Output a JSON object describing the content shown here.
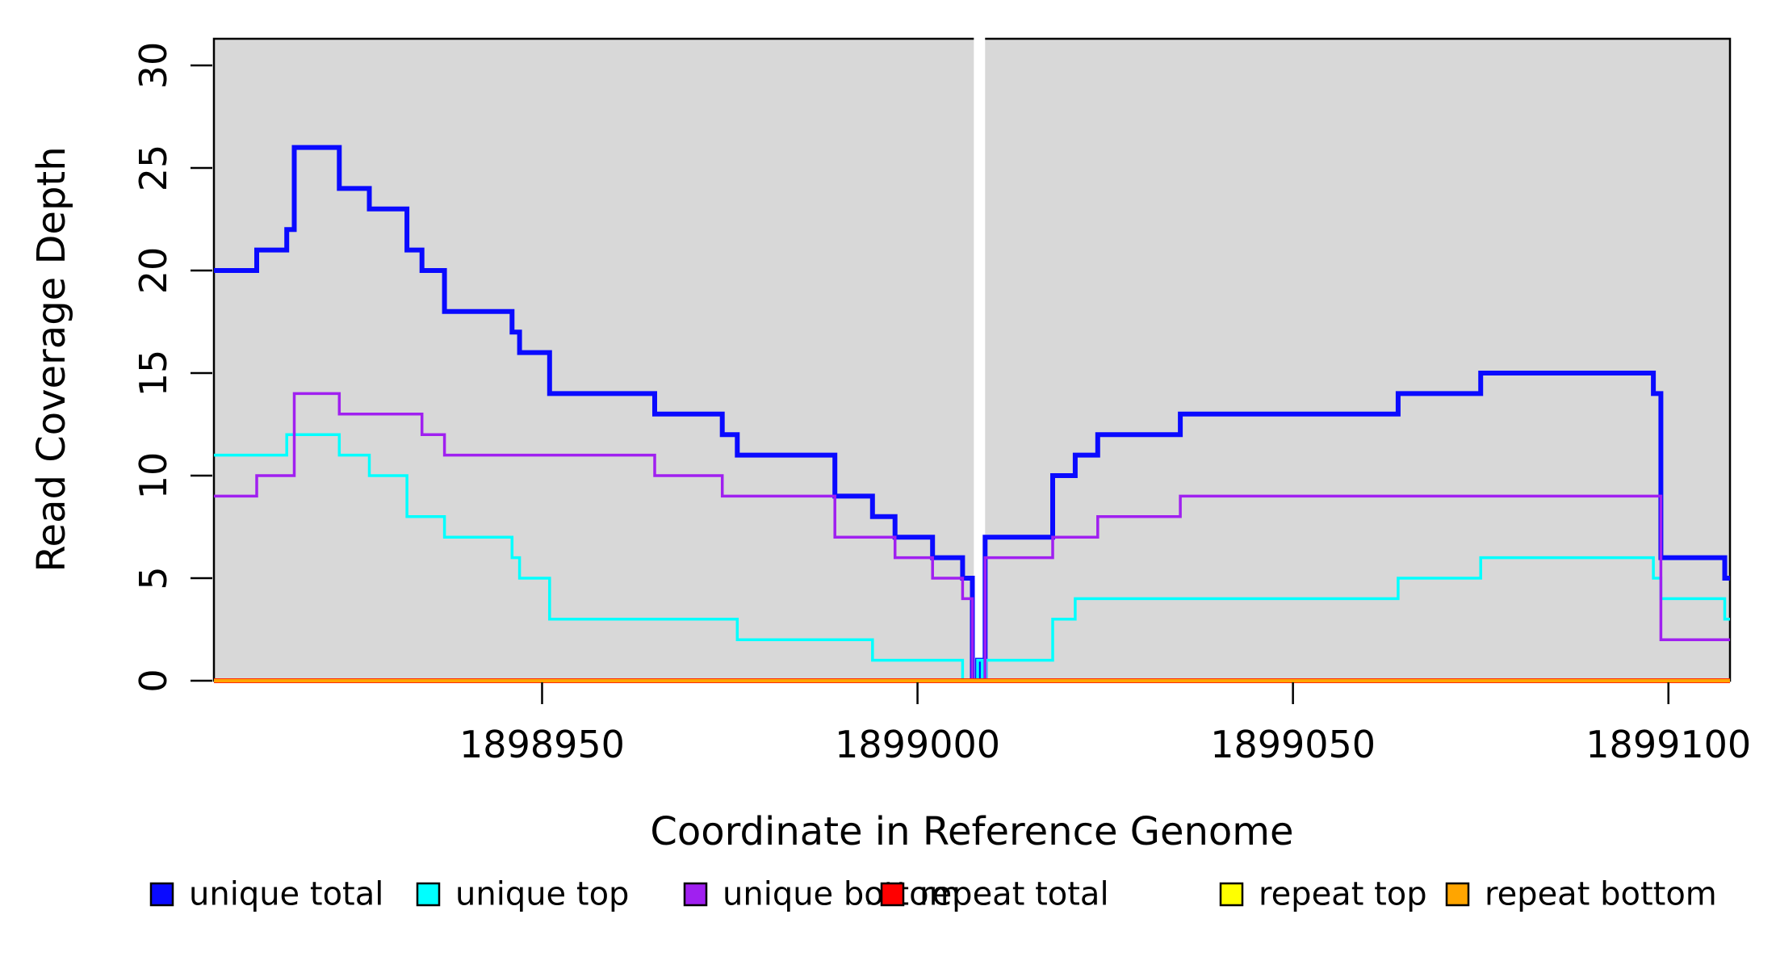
{
  "chart_data": {
    "type": "line",
    "subtype": "step-coverage",
    "title": "",
    "xlabel": "Coordinate in Reference Genome",
    "ylabel": "Read Coverage Depth",
    "xlim": [
      1898906.3,
      1899108.2
    ],
    "ylim": [
      0,
      31.3
    ],
    "grid": false,
    "panel_bg": "#D8D8D8",
    "border_color": "#000000",
    "x_ticks": {
      "values": [
        1898950,
        1899000,
        1899050,
        1899100
      ],
      "labels": [
        "1898950",
        "1899000",
        "1899050",
        "1899100"
      ]
    },
    "y_ticks": {
      "values": [
        0,
        5,
        10,
        15,
        20,
        25,
        30
      ],
      "labels": [
        "0",
        "5",
        "10",
        "15",
        "20",
        "25",
        "30"
      ]
    },
    "gap_band": {
      "from": 1899007.5,
      "to": 1899009.0,
      "color": "#FFFFFF"
    },
    "series": [
      {
        "name": "unique-total",
        "label": "unique total",
        "color": "#0A0AFF",
        "width": 6,
        "points": [
          [
            1898906.3,
            20
          ],
          [
            1898912,
            21
          ],
          [
            1898916,
            22
          ],
          [
            1898917,
            26
          ],
          [
            1898923,
            24
          ],
          [
            1898927,
            23
          ],
          [
            1898932,
            21
          ],
          [
            1898934,
            20
          ],
          [
            1898937,
            18
          ],
          [
            1898946,
            17
          ],
          [
            1898947,
            16
          ],
          [
            1898951,
            14
          ],
          [
            1898965,
            13
          ],
          [
            1898974,
            12
          ],
          [
            1898976,
            11
          ],
          [
            1898989,
            9
          ],
          [
            1898994,
            8
          ],
          [
            1898997,
            7
          ],
          [
            1899002,
            6
          ],
          [
            1899006,
            5
          ],
          [
            1899007.3,
            0
          ],
          [
            1899008.0,
            1
          ],
          [
            1899008.6,
            0
          ],
          [
            1899009.0,
            7
          ],
          [
            1899018,
            10
          ],
          [
            1899021,
            11
          ],
          [
            1899024,
            12
          ],
          [
            1899035,
            13
          ],
          [
            1899064,
            14
          ],
          [
            1899075,
            15
          ],
          [
            1899098,
            14
          ],
          [
            1899099,
            6
          ],
          [
            1899107.5,
            5
          ]
        ]
      },
      {
        "name": "unique-top",
        "label": "unique top",
        "color": "#00FFFF",
        "width": 3.5,
        "points": [
          [
            1898906.3,
            11
          ],
          [
            1898916,
            12
          ],
          [
            1898923,
            11
          ],
          [
            1898927,
            10
          ],
          [
            1898932,
            8
          ],
          [
            1898937,
            7
          ],
          [
            1898946,
            6
          ],
          [
            1898947,
            5
          ],
          [
            1898951,
            3
          ],
          [
            1898976,
            2
          ],
          [
            1898994,
            1
          ],
          [
            1899006.0,
            0
          ],
          [
            1899008.0,
            1
          ],
          [
            1899008.6,
            0
          ],
          [
            1899009.1,
            1
          ],
          [
            1899018,
            3
          ],
          [
            1899021,
            4
          ],
          [
            1899064,
            5
          ],
          [
            1899075,
            6
          ],
          [
            1899098,
            5
          ],
          [
            1899099,
            4
          ],
          [
            1899107.5,
            3
          ]
        ]
      },
      {
        "name": "unique-bottom",
        "label": "unique bottom",
        "color": "#A020F0",
        "width": 3.5,
        "points": [
          [
            1898906.3,
            9
          ],
          [
            1898912,
            10
          ],
          [
            1898917,
            14
          ],
          [
            1898923,
            13
          ],
          [
            1898934,
            12
          ],
          [
            1898937,
            11
          ],
          [
            1898965,
            10
          ],
          [
            1898974,
            9
          ],
          [
            1898989,
            7
          ],
          [
            1898997,
            6
          ],
          [
            1899002,
            5
          ],
          [
            1899006,
            4
          ],
          [
            1899007.3,
            0
          ],
          [
            1899009.0,
            6
          ],
          [
            1899018,
            7
          ],
          [
            1899024,
            8
          ],
          [
            1899035,
            9
          ],
          [
            1899099,
            2
          ]
        ]
      },
      {
        "name": "repeat-total",
        "label": "repeat total",
        "color": "#FF0000",
        "width": 6,
        "points": [
          [
            1898906.3,
            0
          ]
        ]
      },
      {
        "name": "repeat-top",
        "label": "repeat top",
        "color": "#FFFF00",
        "width": 4,
        "points": [
          [
            1898906.3,
            0
          ]
        ]
      },
      {
        "name": "repeat-bottom",
        "label": "repeat bottom",
        "color": "#FFA500",
        "width": 4.5,
        "points": [
          [
            1898906.3,
            0
          ]
        ]
      }
    ],
    "legend": {
      "position": "bottom",
      "items": [
        {
          "label": "unique total",
          "color": "#0A0AFF"
        },
        {
          "label": "unique top",
          "color": "#00FFFF"
        },
        {
          "label": "unique bottom",
          "color": "#A020F0"
        },
        {
          "label": "repeat total",
          "color": "#FF0000"
        },
        {
          "label": "repeat top",
          "color": "#FFFF00"
        },
        {
          "label": "repeat bottom",
          "color": "#FFA500"
        }
      ]
    }
  }
}
